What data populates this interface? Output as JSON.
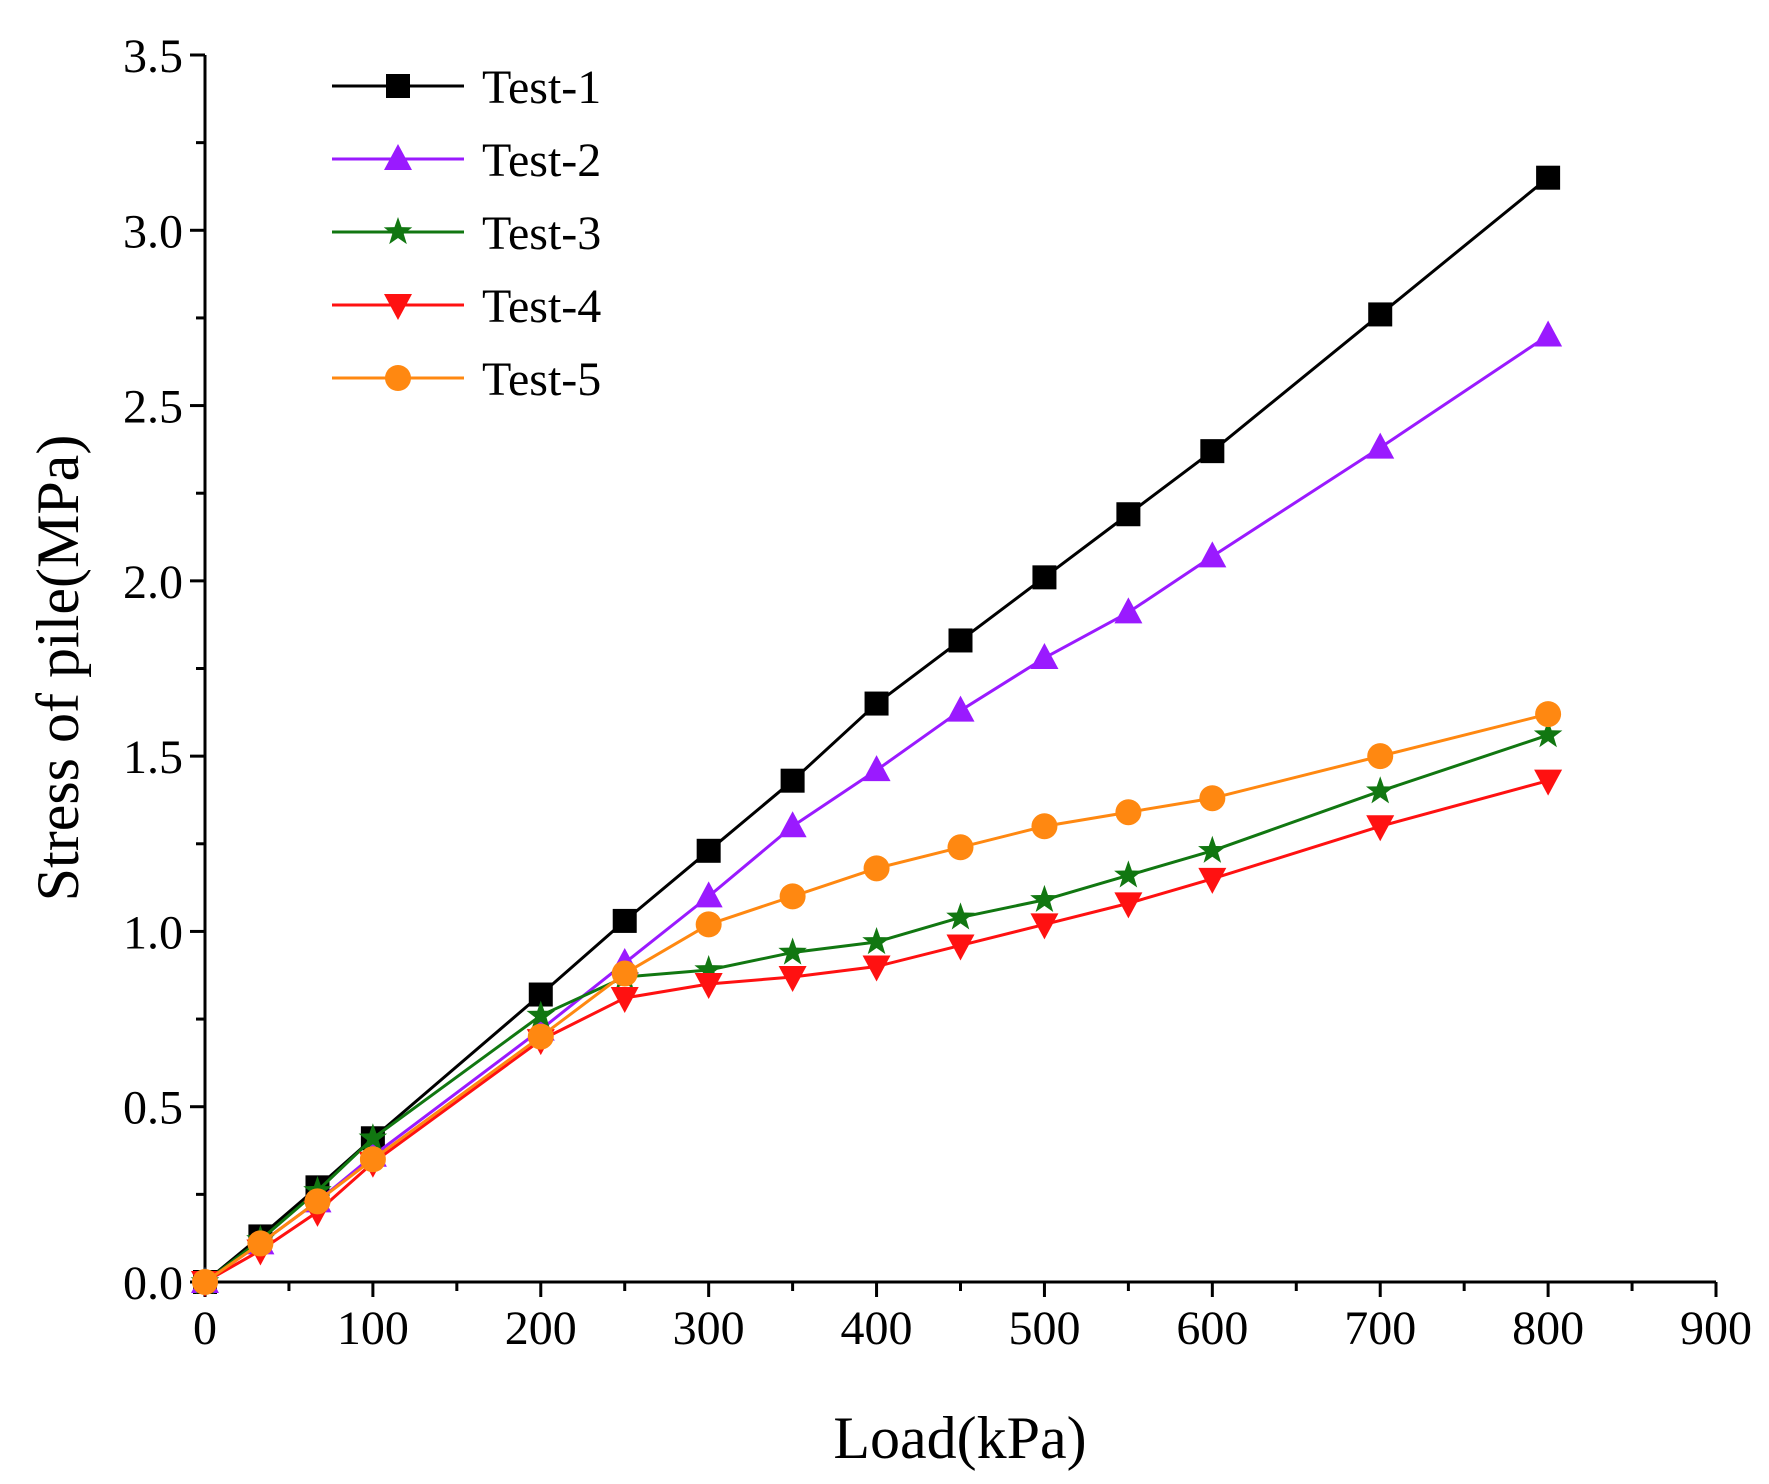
{
  "chart_data": {
    "type": "line",
    "title": "",
    "xlabel": "Load(kPa)",
    "ylabel": "Stress of pile(MPa)",
    "xlim": [
      0,
      900
    ],
    "ylim": [
      0,
      3.5
    ],
    "xticks": [
      0,
      100,
      200,
      300,
      400,
      500,
      600,
      700,
      800,
      900
    ],
    "yticks": [
      0.0,
      0.5,
      1.0,
      1.5,
      2.0,
      2.5,
      3.0,
      3.5
    ],
    "xtick_labels": [
      "0",
      "100",
      "200",
      "300",
      "400",
      "500",
      "600",
      "700",
      "800",
      "900"
    ],
    "ytick_labels": [
      "0.0",
      "0.5",
      "1.0",
      "1.5",
      "2.0",
      "2.5",
      "3.0",
      "3.5"
    ],
    "grid": false,
    "legend_position": "top-left",
    "x": [
      0,
      33,
      67,
      100,
      200,
      250,
      300,
      350,
      400,
      450,
      500,
      550,
      600,
      700,
      800
    ],
    "series": [
      {
        "name": "Test-1",
        "color": "#000000",
        "marker": "square",
        "values": [
          0,
          0.13,
          0.27,
          0.41,
          0.82,
          1.03,
          1.23,
          1.43,
          1.65,
          1.83,
          2.01,
          2.19,
          2.37,
          2.76,
          3.15
        ]
      },
      {
        "name": "Test-2",
        "color": "#9A1AFF",
        "marker": "triangle-up",
        "values": [
          0,
          0.11,
          0.23,
          0.36,
          0.72,
          0.91,
          1.1,
          1.3,
          1.46,
          1.63,
          1.78,
          1.91,
          2.07,
          2.38,
          2.7
        ]
      },
      {
        "name": "Test-3",
        "color": "#117711",
        "marker": "star",
        "values": [
          0,
          0.12,
          0.26,
          0.41,
          0.76,
          0.87,
          0.89,
          0.94,
          0.97,
          1.04,
          1.09,
          1.16,
          1.23,
          1.4,
          1.56
        ]
      },
      {
        "name": "Test-4",
        "color": "#FF1111",
        "marker": "triangle-down",
        "values": [
          0,
          0.09,
          0.2,
          0.34,
          0.69,
          0.81,
          0.85,
          0.87,
          0.9,
          0.96,
          1.02,
          1.08,
          1.15,
          1.3,
          1.43
        ]
      },
      {
        "name": "Test-5",
        "color": "#FF8811",
        "marker": "circle",
        "values": [
          0,
          0.11,
          0.23,
          0.35,
          0.7,
          0.88,
          1.02,
          1.1,
          1.18,
          1.24,
          1.3,
          1.34,
          1.38,
          1.5,
          1.62
        ]
      }
    ]
  }
}
